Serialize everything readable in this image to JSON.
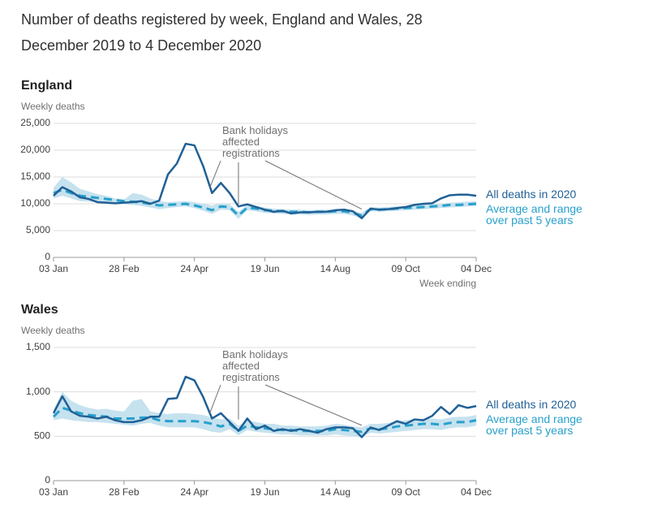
{
  "title": "Number of deaths registered by week, England and Wales, 28 December 2019 to 4 December 2020",
  "chart_data": [
    {
      "type": "line",
      "title": "England",
      "y_label": "Weekly deaths",
      "x_label": "Week ending",
      "annotation": "Bank holidays affected registrations",
      "categories": [
        "03 Jan",
        null,
        null,
        null,
        null,
        null,
        null,
        null,
        "28 Feb",
        null,
        null,
        null,
        null,
        null,
        null,
        null,
        "24 Apr",
        null,
        null,
        null,
        null,
        null,
        null,
        null,
        "19 Jun",
        null,
        null,
        null,
        null,
        null,
        null,
        null,
        "14 Aug",
        null,
        null,
        null,
        null,
        null,
        null,
        null,
        "09 Oct",
        null,
        null,
        null,
        null,
        null,
        null,
        null,
        "04 Dec"
      ],
      "ylim": [
        0,
        25000
      ],
      "yticks": [
        0,
        {
          "value": 5000,
          "label": "5,000"
        },
        {
          "value": 10000,
          "label": "10,000"
        },
        {
          "value": 15000,
          "label": "15,000"
        },
        {
          "value": 20000,
          "label": "20,000"
        },
        {
          "value": 25000,
          "label": "25,000"
        }
      ],
      "grid": true,
      "series": [
        {
          "name": "All deaths in 2020",
          "color": "#206095",
          "values": [
            11500,
            13100,
            12300,
            11200,
            10900,
            10300,
            10200,
            10100,
            10200,
            10300,
            10500,
            10000,
            10600,
            15500,
            17500,
            21200,
            20900,
            17000,
            12000,
            13900,
            12000,
            9500,
            9900,
            9400,
            8900,
            8500,
            8700,
            8200,
            8400,
            8400,
            8500,
            8500,
            8800,
            8900,
            8600,
            7300,
            9100,
            8900,
            9000,
            9200,
            9400,
            9800,
            10000,
            10100,
            11000,
            11600,
            11700,
            11700,
            11500
          ]
        },
        {
          "name": "Average and range over past 5 years",
          "color": "#27a0cc",
          "range_color": "#c6e2ef",
          "values": [
            12000,
            12600,
            12000,
            11500,
            11300,
            11100,
            10900,
            10700,
            10500,
            10400,
            10200,
            10000,
            9700,
            9800,
            9900,
            10000,
            9700,
            9300,
            8800,
            9500,
            9400,
            7800,
            9300,
            9100,
            8800,
            8700,
            8600,
            8500,
            8500,
            8400,
            8500,
            8500,
            8600,
            8600,
            8300,
            7800,
            9000,
            8900,
            9000,
            9100,
            9200,
            9300,
            9400,
            9500,
            9600,
            9800,
            9800,
            9900,
            10000
          ],
          "range_high": [
            13000,
            15000,
            14000,
            12800,
            12300,
            11800,
            11500,
            11000,
            10800,
            12000,
            11700,
            11000,
            10500,
            10300,
            10400,
            10500,
            10300,
            10000,
            9700,
            10100,
            9900,
            8500,
            9800,
            9600,
            9300,
            9100,
            9000,
            8900,
            8900,
            8800,
            8900,
            8900,
            9000,
            9000,
            8700,
            8300,
            9400,
            9300,
            9400,
            9500,
            9600,
            9700,
            9800,
            9900,
            10000,
            10200,
            10300,
            10400,
            10500
          ],
          "range_low": [
            11000,
            11500,
            11000,
            10500,
            10400,
            10300,
            10100,
            10000,
            9900,
            9800,
            9600,
            9300,
            9000,
            9200,
            9400,
            9500,
            9200,
            8700,
            8100,
            8900,
            8800,
            7200,
            8800,
            8600,
            8300,
            8200,
            8100,
            8000,
            8000,
            7900,
            8000,
            8000,
            8100,
            8100,
            7800,
            7300,
            8600,
            8500,
            8600,
            8700,
            8800,
            8900,
            9000,
            9100,
            9200,
            9300,
            9400,
            9500,
            9600
          ]
        }
      ]
    },
    {
      "type": "line",
      "title": "Wales",
      "y_label": "Weekly deaths",
      "annotation": "Bank holidays affected registrations",
      "categories": [
        "03 Jan",
        null,
        null,
        null,
        null,
        null,
        null,
        null,
        "28 Feb",
        null,
        null,
        null,
        null,
        null,
        null,
        null,
        "24 Apr",
        null,
        null,
        null,
        null,
        null,
        null,
        null,
        "19 Jun",
        null,
        null,
        null,
        null,
        null,
        null,
        null,
        "14 Aug",
        null,
        null,
        null,
        null,
        null,
        null,
        null,
        "09 Oct",
        null,
        null,
        null,
        null,
        null,
        null,
        null,
        "04 Dec"
      ],
      "ylim": [
        0,
        1500
      ],
      "yticks": [
        0,
        500,
        {
          "value": 1000,
          "label": "1,000"
        },
        {
          "value": 1500,
          "label": "1,500"
        }
      ],
      "grid": true,
      "series": [
        {
          "name": "All deaths in 2020",
          "color": "#206095",
          "values": [
            760,
            950,
            780,
            730,
            720,
            700,
            720,
            680,
            660,
            660,
            680,
            720,
            720,
            920,
            930,
            1170,
            1130,
            940,
            700,
            760,
            660,
            560,
            700,
            580,
            620,
            560,
            580,
            560,
            580,
            560,
            540,
            580,
            600,
            600,
            590,
            490,
            600,
            570,
            620,
            670,
            640,
            690,
            680,
            730,
            830,
            750,
            850,
            820,
            840
          ]
        },
        {
          "name": "Average and range over past 5 years",
          "color": "#27a0cc",
          "range_color": "#c6e2ef",
          "values": [
            720,
            820,
            790,
            760,
            740,
            730,
            720,
            700,
            700,
            700,
            710,
            710,
            680,
            670,
            670,
            670,
            670,
            660,
            640,
            610,
            640,
            560,
            620,
            600,
            590,
            580,
            570,
            570,
            560,
            560,
            560,
            560,
            580,
            570,
            560,
            550,
            590,
            580,
            590,
            610,
            620,
            630,
            640,
            640,
            630,
            650,
            660,
            660,
            680
          ],
          "range_high": [
            800,
            1000,
            900,
            850,
            820,
            800,
            810,
            790,
            780,
            900,
            920,
            780,
            760,
            750,
            760,
            760,
            750,
            740,
            710,
            690,
            700,
            620,
            680,
            660,
            640,
            640,
            620,
            620,
            610,
            610,
            610,
            620,
            640,
            630,
            610,
            600,
            640,
            640,
            650,
            670,
            680,
            690,
            700,
            700,
            690,
            710,
            720,
            720,
            740
          ],
          "range_low": [
            680,
            700,
            680,
            670,
            660,
            660,
            650,
            640,
            630,
            620,
            640,
            650,
            620,
            600,
            600,
            600,
            600,
            580,
            550,
            540,
            580,
            510,
            570,
            550,
            540,
            530,
            520,
            520,
            510,
            510,
            510,
            510,
            520,
            510,
            500,
            490,
            540,
            530,
            540,
            550,
            560,
            570,
            580,
            580,
            570,
            590,
            600,
            600,
            620
          ]
        }
      ]
    }
  ]
}
